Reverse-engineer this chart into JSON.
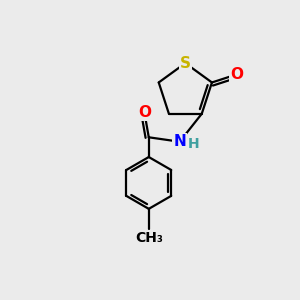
{
  "background_color": "#ebebeb",
  "atom_colors": {
    "S": "#c8b400",
    "O": "#ff0000",
    "N": "#0000ff",
    "H": "#40a0a0",
    "C": "#000000"
  },
  "bond_color": "#000000",
  "bond_width": 1.6,
  "font_size_atoms": 11,
  "fig_width": 3.0,
  "fig_height": 3.0,
  "dpi": 100
}
